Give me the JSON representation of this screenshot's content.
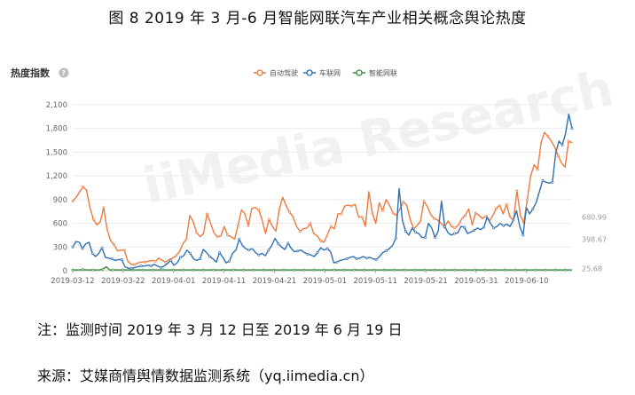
{
  "figure_title": "图 8 2019 年 3 月-6 月智能网联汽车产业相关概念舆论热度",
  "note": "注：监测时间 2019 年 3 月 12 日至 2019 年 6 月 19 日",
  "source": "来源：艾媒商情舆情数据监测系统（yq.iimedia.cn）",
  "watermark": "iiMedia Research",
  "chart_data": {
    "type": "line",
    "heading": "热度指数",
    "help_icon": "question-circle-icon",
    "x_tick_labels": [
      "2019-03-12",
      "2019-03-22",
      "2019-04-01",
      "2019-04-11",
      "2019-04-21",
      "2019-05-01",
      "2019-05-11",
      "2019-05-21",
      "2019-05-31",
      "2019-06-10"
    ],
    "y_tick_labels": [
      "0",
      "300",
      "600",
      "900",
      "1,200",
      "1,500",
      "1,800",
      "2,100"
    ],
    "ylim": [
      0,
      2100
    ],
    "grid": true,
    "legend_position": "top-center",
    "start_date": "2019-03-12",
    "end_date": "2019-06-19",
    "end_labels": [
      "680.99",
      "398.67",
      "25.68"
    ],
    "series": [
      {
        "name": "自动驾驶",
        "color": "#ec7a3d",
        "values": [
          880,
          930,
          1000,
          1060,
          1020,
          800,
          650,
          580,
          620,
          800,
          520,
          380,
          330,
          250,
          260,
          260,
          120,
          80,
          80,
          100,
          110,
          110,
          120,
          130,
          120,
          160,
          130,
          110,
          140,
          160,
          190,
          240,
          340,
          400,
          700,
          620,
          480,
          430,
          470,
          720,
          610,
          480,
          430,
          440,
          560,
          450,
          430,
          400,
          570,
          770,
          720,
          570,
          790,
          800,
          770,
          640,
          470,
          650,
          560,
          500,
          780,
          930,
          820,
          740,
          680,
          560,
          500,
          530,
          540,
          600,
          470,
          440,
          380,
          360,
          460,
          560,
          530,
          720,
          720,
          820,
          830,
          820,
          840,
          680,
          680,
          560,
          1000,
          730,
          600,
          860,
          760,
          900,
          830,
          730,
          700,
          780,
          870,
          830,
          650,
          530,
          570,
          630,
          880,
          810,
          710,
          660,
          640,
          600,
          550,
          630,
          560,
          540,
          580,
          660,
          700,
          780,
          580,
          730,
          700,
          660,
          690,
          630,
          700,
          790,
          830,
          720,
          840,
          680,
          640,
          1010,
          700,
          600,
          900,
          1200,
          1340,
          1280,
          1620,
          1750,
          1700,
          1640,
          1560,
          1450,
          1360,
          1310,
          1640,
          1620
        ]
      },
      {
        "name": "车联网",
        "color": "#2f70b0",
        "values": [
          300,
          370,
          360,
          280,
          340,
          360,
          220,
          180,
          220,
          290,
          170,
          160,
          150,
          130,
          140,
          140,
          50,
          30,
          30,
          40,
          50,
          60,
          60,
          70,
          60,
          80,
          60,
          40,
          60,
          90,
          130,
          70,
          100,
          170,
          190,
          260,
          220,
          150,
          130,
          150,
          270,
          230,
          180,
          150,
          110,
          230,
          170,
          100,
          120,
          220,
          260,
          400,
          320,
          280,
          260,
          280,
          230,
          200,
          220,
          190,
          260,
          320,
          410,
          340,
          300,
          270,
          350,
          280,
          240,
          250,
          260,
          230,
          210,
          200,
          180,
          230,
          290,
          260,
          280,
          240,
          100,
          110,
          130,
          140,
          150,
          170,
          180,
          150,
          160,
          180,
          160,
          170,
          150,
          140,
          180,
          230,
          250,
          280,
          320,
          410,
          1040,
          640,
          500,
          450,
          540,
          490,
          470,
          420,
          420,
          600,
          540,
          420,
          500,
          880,
          560,
          480,
          450,
          470,
          480,
          560,
          550,
          470,
          490,
          510,
          540,
          520,
          550,
          680,
          600,
          540,
          560,
          600,
          570,
          590,
          560,
          640,
          760,
          560,
          450,
          800,
          720,
          780,
          860,
          1000,
          1140,
          1120,
          1110,
          1120,
          1490,
          1640,
          1590,
          1730,
          1980,
          1800
        ]
      },
      {
        "name": "智能网联",
        "color": "#3a8a3e",
        "values": [
          10,
          10,
          10,
          15,
          10,
          10,
          10,
          10,
          10,
          20,
          50,
          10,
          10,
          10,
          10,
          10,
          10,
          10,
          10,
          10,
          10,
          10,
          10,
          10,
          10,
          10,
          10,
          10,
          10,
          10,
          10,
          10,
          10,
          10,
          10,
          10,
          10,
          10,
          10,
          10,
          10,
          10,
          10,
          10,
          10,
          10,
          10,
          10,
          10,
          10,
          10,
          10,
          10,
          10,
          10,
          10,
          10,
          10,
          10,
          10,
          10,
          10,
          10,
          10,
          10,
          10,
          10,
          10,
          10,
          10,
          10,
          10,
          10,
          10,
          10,
          10,
          10,
          10,
          10,
          10,
          10,
          10,
          10,
          10,
          10,
          10,
          10,
          10,
          10,
          10,
          10,
          10,
          10,
          10,
          10,
          10,
          10,
          10,
          10,
          10,
          10,
          10,
          10,
          10,
          10,
          10,
          10,
          10,
          10,
          10,
          10,
          10,
          10,
          10,
          10,
          10,
          10,
          10,
          10,
          10,
          10,
          10,
          10,
          10,
          10,
          10,
          10,
          10,
          10,
          10,
          10,
          10,
          10,
          10,
          10,
          10,
          10,
          10,
          10,
          10,
          10,
          10,
          10,
          10,
          10,
          10,
          10,
          10,
          10,
          10
        ]
      }
    ]
  }
}
